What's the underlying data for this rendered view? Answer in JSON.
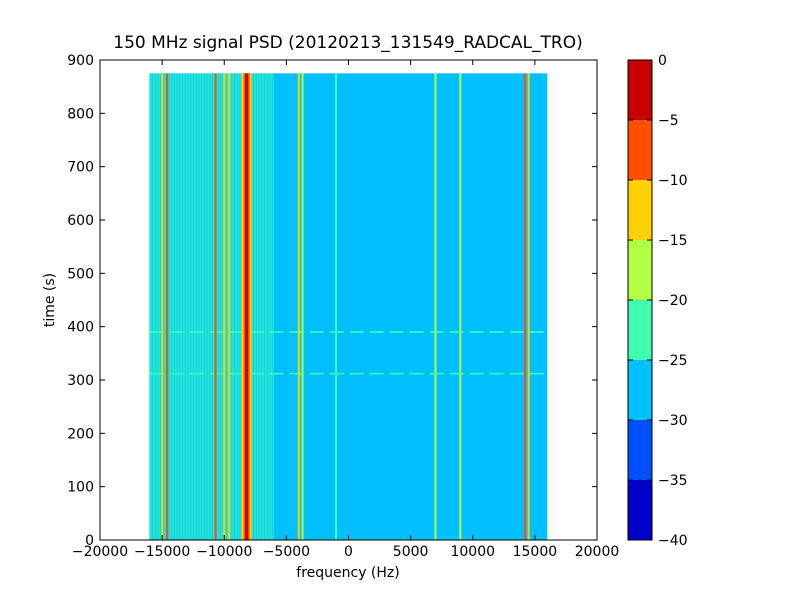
{
  "chart_data": {
    "type": "heatmap",
    "title": "150 MHz signal PSD (20120213_131549_RADCAL_TRO)",
    "xlabel": "frequency (Hz)",
    "ylabel": "time (s)",
    "xlim": [
      -20000,
      20000
    ],
    "ylim": [
      0,
      900
    ],
    "xticks": [
      -20000,
      -15000,
      -10000,
      -5000,
      0,
      5000,
      10000,
      15000,
      20000
    ],
    "yticks": [
      0,
      100,
      200,
      300,
      400,
      500,
      600,
      700,
      800,
      900
    ],
    "data_extent": {
      "x": [
        -16000,
        16000
      ],
      "y": [
        0,
        875
      ]
    },
    "background_level": -28,
    "grid": false,
    "colorbar": {
      "levels": [
        -40,
        -35,
        -30,
        -25,
        -20,
        -15,
        -10,
        -5,
        0
      ],
      "colors": [
        "#0000c8",
        "#0050ff",
        "#00c0ff",
        "#40ffb0",
        "#b0ff40",
        "#ffd000",
        "#ff5000",
        "#c80000"
      ],
      "tick_labels": [
        "0",
        "−5",
        "−10",
        "−15",
        "−20",
        "−25",
        "−30",
        "−35",
        "−40"
      ]
    },
    "features": [
      {
        "kind": "carrier",
        "x": -8200,
        "level": -2
      },
      {
        "kind": "line",
        "x": -15000,
        "level": -12
      },
      {
        "kind": "line",
        "x": -14600,
        "level": -8
      },
      {
        "kind": "line",
        "x": -10700,
        "level": -10
      },
      {
        "kind": "line",
        "x": -10000,
        "level": -12
      },
      {
        "kind": "line",
        "x": -9600,
        "level": -15
      },
      {
        "kind": "line",
        "x": -4000,
        "level": -12
      },
      {
        "kind": "line",
        "x": -3700,
        "level": -18
      },
      {
        "kind": "line",
        "x": -1000,
        "level": -22
      },
      {
        "kind": "line",
        "x": 7000,
        "level": -18
      },
      {
        "kind": "line",
        "x": 9000,
        "level": -18
      },
      {
        "kind": "line",
        "x": 14200,
        "level": -10
      },
      {
        "kind": "line",
        "x": 14500,
        "level": -12
      },
      {
        "kind": "band",
        "x": [
          -16000,
          -6000
        ],
        "level": -23
      },
      {
        "kind": "burst",
        "y": 390,
        "level": -23
      },
      {
        "kind": "burst",
        "y": 312,
        "level": -23
      }
    ]
  }
}
